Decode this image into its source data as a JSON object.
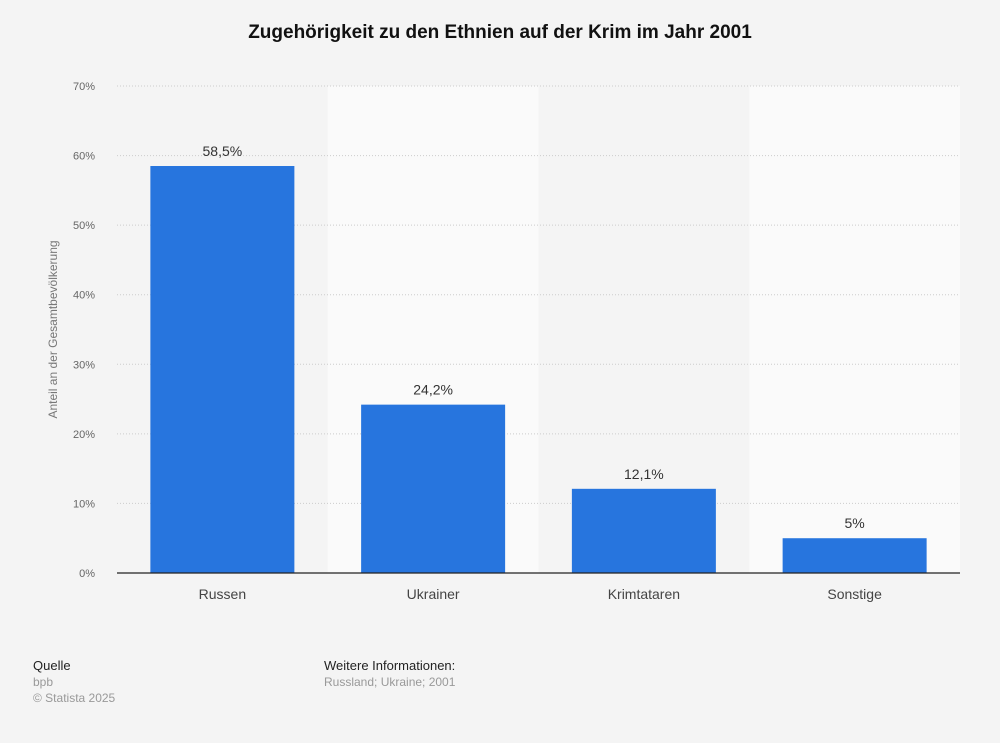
{
  "chart_data": {
    "type": "bar",
    "title": "Zugehörigkeit zu den Ethnien auf der Krim im Jahr 2001",
    "ylabel": "Anteil an der Gesamtbevölkerung",
    "xlabel": "",
    "categories": [
      "Russen",
      "Ukrainer",
      "Krimtataren",
      "Sonstige"
    ],
    "values": [
      58.5,
      24.2,
      12.1,
      5
    ],
    "data_labels": [
      "58,5%",
      "24,2%",
      "12,1%",
      "5%"
    ],
    "ylim": [
      0,
      70
    ],
    "yticks": [
      0,
      10,
      20,
      30,
      40,
      50,
      60,
      70
    ],
    "ytick_labels": [
      "0%",
      "10%",
      "20%",
      "30%",
      "40%",
      "50%",
      "60%",
      "70%"
    ],
    "grid": true,
    "bar_color": "#2775de"
  },
  "footer": {
    "source_heading": "Quelle",
    "source": "bpb",
    "copyright": "© Statista 2025",
    "info_heading": "Weitere Informationen:",
    "info": "Russland; Ukraine; 2001"
  }
}
